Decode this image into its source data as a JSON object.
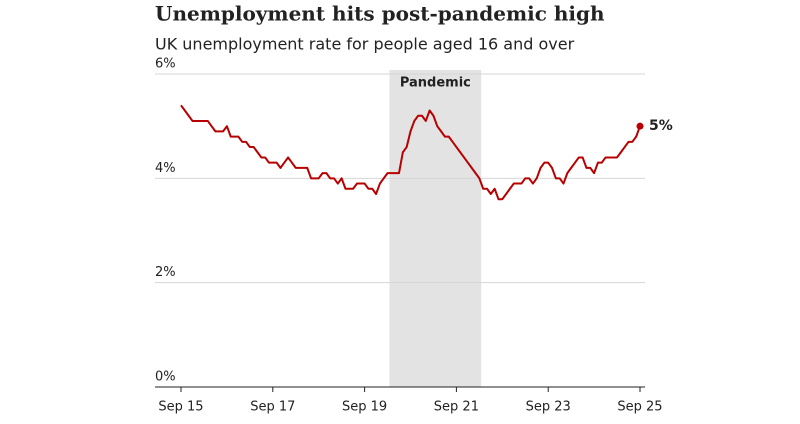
{
  "chart_data": {
    "type": "line",
    "title": "Unemployment hits post-pandemic high",
    "subtitle": "UK unemployment rate for people aged 16 and over",
    "categories": [
      "Sep 15",
      null,
      null,
      null,
      null,
      null,
      null,
      null,
      null,
      null,
      null,
      null,
      null,
      null,
      null,
      null,
      null,
      null,
      null,
      null,
      null,
      null,
      null,
      null,
      "Sep 17",
      null,
      null,
      null,
      null,
      null,
      null,
      null,
      null,
      null,
      null,
      null,
      null,
      null,
      null,
      null,
      null,
      null,
      null,
      null,
      null,
      null,
      null,
      null,
      "Sep 19",
      null,
      null,
      null,
      null,
      null,
      null,
      null,
      null,
      null,
      null,
      null,
      null,
      null,
      null,
      null,
      null,
      null,
      null,
      null,
      null,
      null,
      null,
      null,
      "Sep 21",
      null,
      null,
      null,
      null,
      null,
      null,
      null,
      null,
      null,
      null,
      null,
      null,
      null,
      null,
      null,
      null,
      null,
      null,
      null,
      null,
      null,
      null,
      null,
      "Sep 23",
      null,
      null,
      null,
      null,
      null,
      null,
      null,
      null,
      null,
      null,
      null,
      null,
      null,
      null,
      null,
      null,
      null,
      null,
      null,
      null,
      null,
      null,
      null,
      "Sep 25"
    ],
    "series": [
      {
        "color": "#b80000",
        "values": [
          5.4,
          5.3,
          5.2,
          5.1,
          5.1,
          5.1,
          5.1,
          5.1,
          5.0,
          4.9,
          4.9,
          4.9,
          5.0,
          4.8,
          4.8,
          4.8,
          4.7,
          4.7,
          4.6,
          4.6,
          4.5,
          4.4,
          4.4,
          4.3,
          4.3,
          4.3,
          4.2,
          4.3,
          4.4,
          4.3,
          4.2,
          4.2,
          4.2,
          4.2,
          4.0,
          4.0,
          4.0,
          4.1,
          4.1,
          4.0,
          4.0,
          3.9,
          4.0,
          3.8,
          3.8,
          3.8,
          3.9,
          3.9,
          3.9,
          3.8,
          3.8,
          3.7,
          3.9,
          4.0,
          4.1,
          4.1,
          4.1,
          4.1,
          4.5,
          4.6,
          4.9,
          5.1,
          5.2,
          5.2,
          5.1,
          5.3,
          5.2,
          5.0,
          4.9,
          4.8,
          4.8,
          4.7,
          4.6,
          4.5,
          4.4,
          4.3,
          4.2,
          4.1,
          4.0,
          3.8,
          3.8,
          3.7,
          3.8,
          3.6,
          3.6,
          3.7,
          3.8,
          3.9,
          3.9,
          3.9,
          4.0,
          4.0,
          3.9,
          4.0,
          4.2,
          4.3,
          4.3,
          4.2,
          4.0,
          4.0,
          3.9,
          4.1,
          4.2,
          4.3,
          4.4,
          4.4,
          4.2,
          4.2,
          4.1,
          4.3,
          4.3,
          4.4,
          4.4,
          4.4,
          4.4,
          4.5,
          4.6,
          4.7,
          4.7,
          4.8,
          5.0
        ],
        "value_labels": [
          null,
          null,
          null,
          null,
          null,
          null,
          null,
          null,
          null,
          null,
          null,
          null,
          null,
          null,
          null,
          null,
          null,
          null,
          null,
          null,
          null,
          null,
          null,
          null,
          null,
          null,
          null,
          null,
          null,
          null,
          null,
          null,
          null,
          null,
          null,
          null,
          null,
          null,
          null,
          null,
          null,
          null,
          null,
          null,
          null,
          null,
          null,
          null,
          null,
          null,
          null,
          null,
          null,
          null,
          null,
          null,
          null,
          null,
          null,
          null,
          null,
          null,
          null,
          null,
          null,
          null,
          null,
          null,
          null,
          null,
          null,
          null,
          null,
          null,
          null,
          null,
          null,
          null,
          null,
          null,
          null,
          null,
          null,
          null,
          null,
          null,
          null,
          null,
          null,
          null,
          null,
          null,
          null,
          null,
          null,
          null,
          null,
          null,
          null,
          null,
          null,
          null,
          null,
          null,
          null,
          null,
          null,
          null,
          null,
          null,
          null,
          null,
          null,
          null,
          null,
          null,
          null,
          null,
          null,
          null,
          "5%"
        ]
      }
    ],
    "shaded_region": {
      "label": "Pandemic",
      "from": 54.5,
      "to": 78.5,
      "color": "#e3e3e3"
    },
    "ylim": [
      0,
      6
    ],
    "yticks": [
      {
        "value": 0,
        "label": "0%"
      },
      {
        "value": 2,
        "label": "2%"
      },
      {
        "value": 4,
        "label": "4%"
      },
      {
        "value": 6,
        "label": "6%"
      }
    ],
    "grid": true
  }
}
